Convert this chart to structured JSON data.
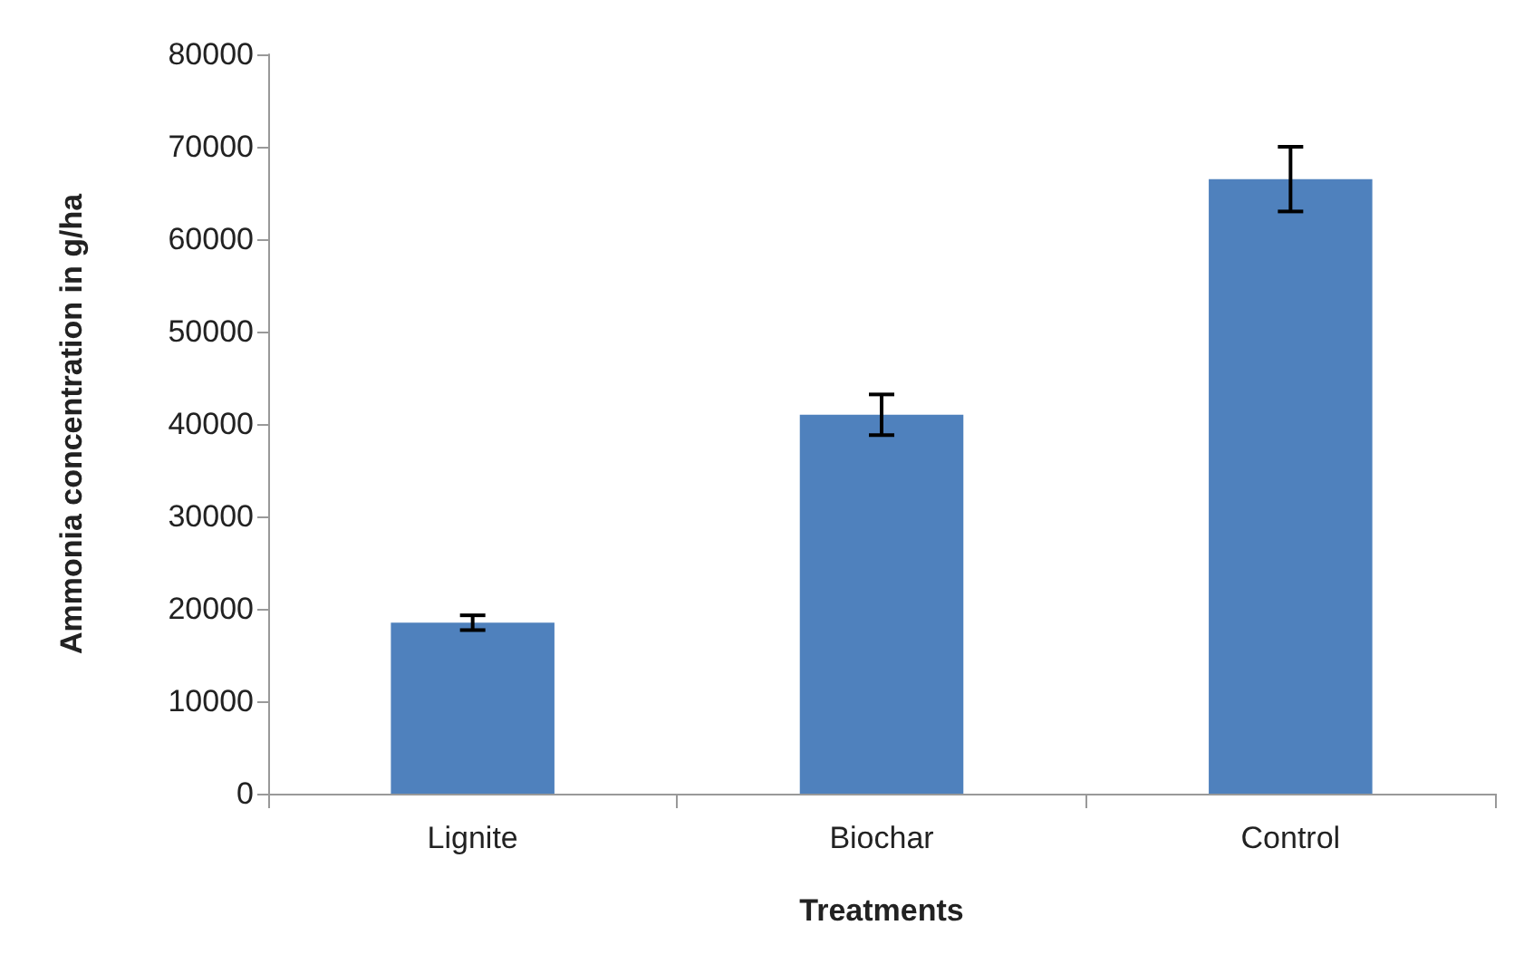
{
  "chart_data": {
    "type": "bar",
    "xlabel": "Treatments",
    "ylabel": "Ammonia concentration in g/ha",
    "categories": [
      "Lignite",
      "Biochar",
      "Control"
    ],
    "values": [
      18500,
      41000,
      66500
    ],
    "errors": [
      800,
      2200,
      3500
    ],
    "color": "#4f81bd",
    "ylim": [
      0,
      80000
    ],
    "yticks": [
      0,
      10000,
      20000,
      30000,
      40000,
      50000,
      60000,
      70000,
      80000
    ],
    "grid": false
  }
}
